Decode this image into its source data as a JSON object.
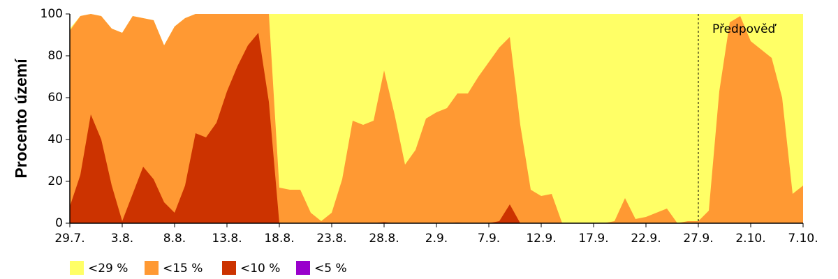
{
  "chart_data": {
    "type": "area",
    "ylabel": "Procento území",
    "categories": [
      "29.7.",
      null,
      null,
      null,
      null,
      "3.8.",
      null,
      null,
      null,
      null,
      "8.8.",
      null,
      null,
      null,
      null,
      "13.8.",
      null,
      null,
      null,
      null,
      "18.8.",
      null,
      null,
      null,
      null,
      "23.8.",
      null,
      null,
      null,
      null,
      "28.8.",
      null,
      null,
      null,
      null,
      "2.9.",
      null,
      null,
      null,
      null,
      "7.9.",
      null,
      null,
      null,
      null,
      "12.9.",
      null,
      null,
      null,
      null,
      "17.9.",
      null,
      null,
      null,
      null,
      "22.9.",
      null,
      null,
      null,
      null,
      "27.9.",
      null,
      null,
      null,
      null,
      "2.10.",
      null,
      null,
      null,
      null,
      "7.10."
    ],
    "series": [
      {
        "name": "<29 %",
        "color": "#ffff66",
        "values": [
          93,
          99,
          100,
          99,
          93,
          91,
          99,
          98,
          97,
          85,
          94,
          98,
          100,
          100,
          100,
          100,
          100,
          100,
          100,
          100,
          100,
          100,
          100,
          100,
          100,
          100,
          100,
          100,
          100,
          100,
          100,
          100,
          100,
          100,
          100,
          100,
          100,
          100,
          100,
          100,
          100,
          100,
          100,
          100,
          100,
          100,
          100,
          100,
          100,
          100,
          100,
          100,
          100,
          100,
          100,
          100,
          100,
          100,
          100,
          100,
          100,
          100,
          100,
          100,
          100,
          100,
          100,
          100,
          100,
          100,
          100
        ]
      },
      {
        "name": "<15 %",
        "color": "#ff9933",
        "values": [
          92,
          99,
          100,
          99,
          93,
          91,
          99,
          98,
          97,
          85,
          94,
          98,
          100,
          100,
          100,
          100,
          100,
          100,
          100,
          100,
          17,
          16,
          16,
          5,
          1,
          5,
          21,
          49,
          47,
          49,
          73,
          52,
          28,
          35,
          50,
          53,
          55,
          62,
          62,
          70,
          77,
          84,
          89,
          47,
          16,
          13,
          14,
          0,
          0,
          0,
          0,
          0,
          1,
          12,
          2,
          3,
          5,
          7,
          0,
          1,
          1,
          6,
          63,
          96,
          99,
          87,
          83,
          79,
          60,
          14,
          18
        ]
      },
      {
        "name": "<10 %",
        "color": "#cc3300",
        "values": [
          8,
          23,
          52,
          40,
          18,
          1,
          14,
          27,
          21,
          10,
          5,
          18,
          43,
          41,
          48,
          63,
          75,
          85,
          91,
          58,
          0,
          0,
          0,
          0,
          0,
          0,
          0,
          0,
          0,
          0,
          0.5,
          0,
          0,
          0,
          0,
          0,
          0,
          0.3,
          0,
          0,
          0,
          1,
          9,
          0,
          0,
          0,
          0,
          0,
          0,
          0,
          0,
          0,
          0,
          0,
          0,
          0,
          0,
          0,
          0,
          0,
          0,
          0,
          0,
          0,
          0,
          0,
          0,
          0,
          0,
          0,
          0
        ]
      },
      {
        "name": "<5 %",
        "color": "#9900cc",
        "values": [
          0,
          0,
          0,
          0,
          0,
          0,
          0,
          0,
          0,
          0,
          0,
          0,
          0,
          0,
          0,
          0,
          0,
          0,
          0,
          0,
          0,
          0,
          0,
          0,
          0,
          0,
          0,
          0,
          0,
          0,
          0,
          0,
          0,
          0,
          0,
          0,
          0,
          0,
          0,
          0,
          0,
          0,
          0,
          0,
          0,
          0,
          0,
          0,
          0,
          0,
          0,
          0,
          0,
          0,
          0,
          0,
          0,
          0,
          0,
          0,
          0,
          0,
          0,
          0,
          0,
          0,
          0,
          0,
          0,
          0,
          0
        ]
      }
    ],
    "ylim": [
      0,
      100
    ],
    "yticks": [
      0,
      20,
      40,
      60,
      80,
      100
    ],
    "annotations": [
      {
        "text": "Předpověď",
        "x": "27.9."
      }
    ]
  }
}
